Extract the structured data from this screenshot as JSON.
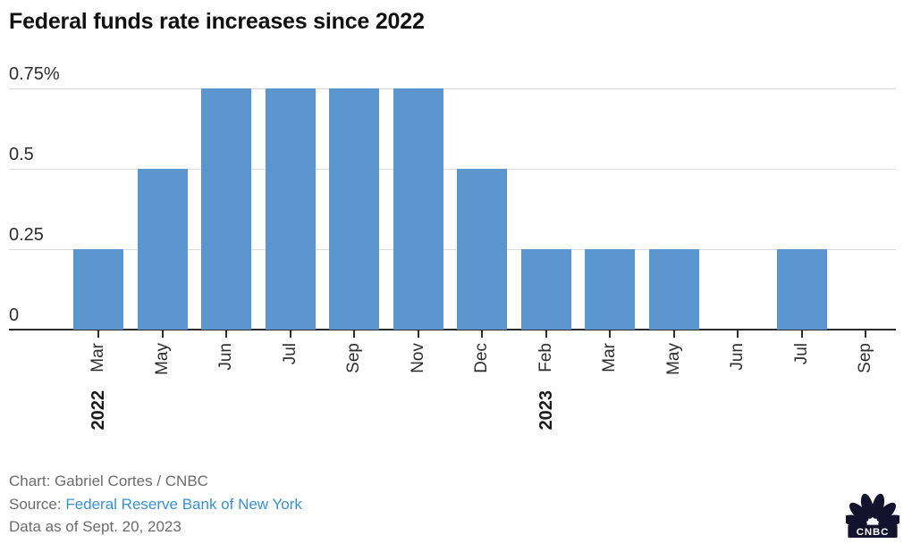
{
  "title": "Federal funds rate increases since 2022",
  "chart_data": {
    "type": "bar",
    "title": "Federal funds rate increases since 2022",
    "categories": [
      "Mar",
      "May",
      "Jun",
      "Jul",
      "Sep",
      "Nov",
      "Dec",
      "Feb",
      "Mar",
      "May",
      "Jun",
      "Jul",
      "Sep"
    ],
    "values": [
      0.25,
      0.5,
      0.75,
      0.75,
      0.75,
      0.75,
      0.5,
      0.25,
      0.25,
      0.25,
      0,
      0.25,
      0
    ],
    "year_labels": [
      {
        "index": 0,
        "text": "2022"
      },
      {
        "index": 7,
        "text": "2023"
      }
    ],
    "yticks": [
      {
        "value": 0,
        "label": "0"
      },
      {
        "value": 0.25,
        "label": "0.25"
      },
      {
        "value": 0.5,
        "label": "0.5"
      },
      {
        "value": 0.75,
        "label": "0.75%"
      }
    ],
    "ylim": [
      0,
      0.75
    ],
    "xlabel": "",
    "ylabel": "",
    "grid": true,
    "legend": "none",
    "bar_color": "#5b96cf"
  },
  "colors": {
    "bar_blue": "#5b96cf",
    "link_blue": "#3a90d5",
    "gridline_gray": "#d9d9d9",
    "axis_dark": "#2b2b2b",
    "footer_gray": "#6b6b6b",
    "logo_dark": "#13132e"
  },
  "footer": {
    "chart_credit": "Chart: Gabriel Cortes / CNBC",
    "source_label": "Source: ",
    "source_link": "Federal Reserve Bank of New York",
    "data_as_of": "Data as of Sept. 20, 2023"
  },
  "logo": {
    "brand": "CNBC"
  }
}
